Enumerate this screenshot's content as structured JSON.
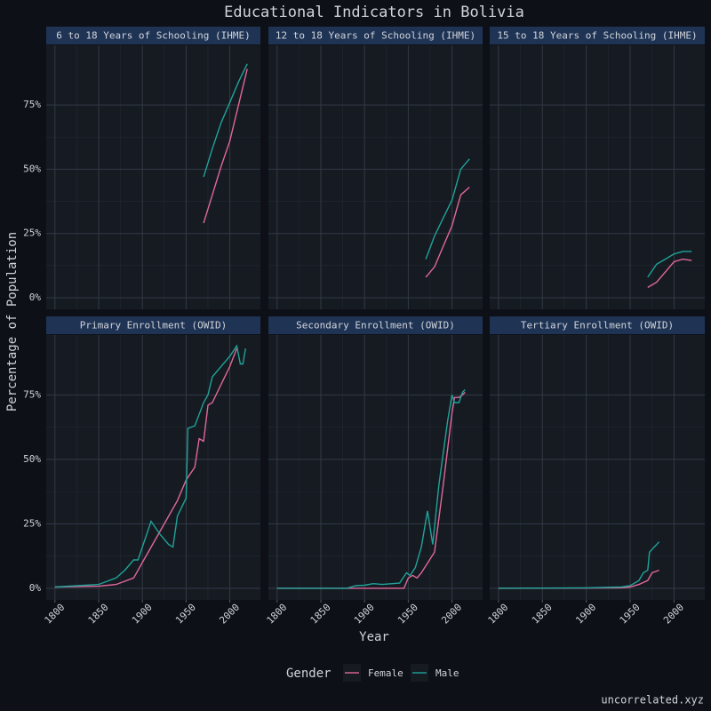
{
  "title": "Educational Indicators in Bolivia",
  "x_label": "Year",
  "y_label": "Percentage of Population",
  "legend_title": "Gender",
  "caption": "uncorrelated.xyz",
  "chart_data": [
    {
      "type": "line",
      "title": "6 to 18 Years of Schooling (IHME)",
      "xlim": [
        1790,
        2035
      ],
      "ylim": [
        -4.5,
        98.2
      ],
      "xticks": [
        1800,
        1850,
        1900,
        1950,
        2000
      ],
      "yticks": [
        {
          "value": 0,
          "label": "0%"
        },
        {
          "value": 25,
          "label": "25%"
        },
        {
          "value": 50,
          "label": "50%"
        },
        {
          "value": 75,
          "label": "75%"
        }
      ],
      "grid": true,
      "series": [
        {
          "name": "Female",
          "color": "#e0689a",
          "x": [
            1970,
            1980,
            1990,
            2000,
            2010,
            2020
          ],
          "values": [
            29,
            40,
            51,
            61,
            75,
            89
          ]
        },
        {
          "name": "Male",
          "color": "#1fa39a",
          "x": [
            1970,
            1980,
            1990,
            2000,
            2010,
            2020
          ],
          "values": [
            47,
            58,
            68,
            76,
            84,
            91
          ]
        }
      ]
    },
    {
      "type": "line",
      "title": "12 to 18 Years of Schooling (IHME)",
      "xlim": [
        1790,
        2035
      ],
      "ylim": [
        -4.5,
        98.2
      ],
      "xticks": [
        1800,
        1850,
        1900,
        1950,
        2000
      ],
      "yticks": [
        {
          "value": 0,
          "label": "0%"
        },
        {
          "value": 25,
          "label": "25%"
        },
        {
          "value": 50,
          "label": "50%"
        },
        {
          "value": 75,
          "label": "75%"
        }
      ],
      "grid": true,
      "series": [
        {
          "name": "Female",
          "color": "#e0689a",
          "x": [
            1970,
            1980,
            1990,
            2000,
            2010,
            2020
          ],
          "values": [
            8,
            12,
            20,
            28,
            40,
            43
          ]
        },
        {
          "name": "Male",
          "color": "#1fa39a",
          "x": [
            1970,
            1980,
            1990,
            2000,
            2010,
            2020
          ],
          "values": [
            15,
            24,
            31,
            38,
            50,
            54
          ]
        }
      ]
    },
    {
      "type": "line",
      "title": "15 to 18 Years of Schooling (IHME)",
      "xlim": [
        1790,
        2035
      ],
      "ylim": [
        -4.5,
        98.2
      ],
      "xticks": [
        1800,
        1850,
        1900,
        1950,
        2000
      ],
      "yticks": [
        {
          "value": 0,
          "label": "0%"
        },
        {
          "value": 25,
          "label": "25%"
        },
        {
          "value": 50,
          "label": "50%"
        },
        {
          "value": 75,
          "label": "75%"
        }
      ],
      "grid": true,
      "series": [
        {
          "name": "Female",
          "color": "#e0689a",
          "x": [
            1970,
            1980,
            1990,
            2000,
            2010,
            2020
          ],
          "values": [
            4,
            6,
            10,
            14,
            15,
            14.5
          ]
        },
        {
          "name": "Male",
          "color": "#1fa39a",
          "x": [
            1970,
            1980,
            1990,
            2000,
            2010,
            2020
          ],
          "values": [
            8,
            13,
            15,
            17,
            18,
            18
          ]
        }
      ]
    },
    {
      "type": "line",
      "title": "Primary Enrollment (OWID)",
      "xlim": [
        1790,
        2035
      ],
      "ylim": [
        -4.5,
        98.2
      ],
      "xticks": [
        1800,
        1850,
        1900,
        1950,
        2000
      ],
      "yticks": [
        {
          "value": 0,
          "label": "0%"
        },
        {
          "value": 25,
          "label": "25%"
        },
        {
          "value": 50,
          "label": "50%"
        },
        {
          "value": 75,
          "label": "75%"
        }
      ],
      "grid": true,
      "series": [
        {
          "name": "Female",
          "color": "#e0689a",
          "x": [
            1800,
            1850,
            1870,
            1890,
            1900,
            1920,
            1940,
            1950,
            1960,
            1965,
            1970,
            1975,
            1980,
            1990,
            2000,
            2008
          ],
          "values": [
            0.5,
            0.8,
            1.5,
            4,
            10,
            22,
            34,
            42,
            47,
            58,
            57,
            71,
            72,
            79,
            86,
            93
          ]
        },
        {
          "name": "Male",
          "color": "#1fa39a",
          "x": [
            1800,
            1850,
            1870,
            1880,
            1890,
            1895,
            1900,
            1910,
            1920,
            1930,
            1935,
            1940,
            1950,
            1952,
            1960,
            1970,
            1975,
            1980,
            1990,
            2000,
            2008,
            2012,
            2015,
            2018
          ],
          "values": [
            0.5,
            1.5,
            4,
            7,
            11,
            11,
            16,
            26,
            21,
            17,
            16,
            28,
            35,
            62,
            63,
            72,
            75,
            82,
            86,
            90,
            94,
            87,
            87,
            93
          ]
        }
      ]
    },
    {
      "type": "line",
      "title": "Secondary Enrollment (OWID)",
      "xlim": [
        1790,
        2035
      ],
      "ylim": [
        -4.5,
        98.2
      ],
      "xticks": [
        1800,
        1850,
        1900,
        1950,
        2000
      ],
      "yticks": [
        {
          "value": 0,
          "label": "0%"
        },
        {
          "value": 25,
          "label": "25%"
        },
        {
          "value": 50,
          "label": "50%"
        },
        {
          "value": 75,
          "label": "75%"
        }
      ],
      "grid": true,
      "series": [
        {
          "name": "Female",
          "color": "#e0689a",
          "x": [
            1800,
            1900,
            1945,
            1950,
            1955,
            1960,
            1965,
            1980,
            1990,
            2000,
            2003,
            2008,
            2012,
            2015
          ],
          "values": [
            0,
            0,
            0,
            4,
            5,
            4,
            6,
            14,
            40,
            68,
            74,
            74,
            75,
            76
          ]
        },
        {
          "name": "Male",
          "color": "#1fa39a",
          "x": [
            1800,
            1880,
            1890,
            1900,
            1910,
            1920,
            1940,
            1948,
            1952,
            1958,
            1965,
            1972,
            1978,
            1985,
            1995,
            2000,
            2003,
            2008,
            2012,
            2015
          ],
          "values": [
            0,
            0,
            1,
            1.2,
            1.8,
            1.5,
            2,
            6,
            5,
            8,
            16,
            30,
            17,
            40,
            65,
            75,
            72,
            72,
            76,
            77
          ]
        }
      ]
    },
    {
      "type": "line",
      "title": "Tertiary Enrollment (OWID)",
      "xlim": [
        1790,
        2035
      ],
      "ylim": [
        -4.5,
        98.2
      ],
      "xticks": [
        1800,
        1850,
        1900,
        1950,
        2000
      ],
      "yticks": [
        {
          "value": 0,
          "label": "0%"
        },
        {
          "value": 25,
          "label": "25%"
        },
        {
          "value": 50,
          "label": "50%"
        },
        {
          "value": 75,
          "label": "75%"
        }
      ],
      "grid": true,
      "series": [
        {
          "name": "Female",
          "color": "#e0689a",
          "x": [
            1800,
            1900,
            1940,
            1950,
            1960,
            1970,
            1975,
            1983
          ],
          "values": [
            0,
            0.1,
            0.2,
            0.5,
            1.5,
            3,
            6,
            7
          ]
        },
        {
          "name": "Male",
          "color": "#1fa39a",
          "x": [
            1800,
            1900,
            1940,
            1950,
            1960,
            1965,
            1970,
            1972,
            1983
          ],
          "values": [
            0,
            0.2,
            0.5,
            1,
            3,
            6,
            7,
            14,
            18
          ]
        }
      ]
    }
  ]
}
